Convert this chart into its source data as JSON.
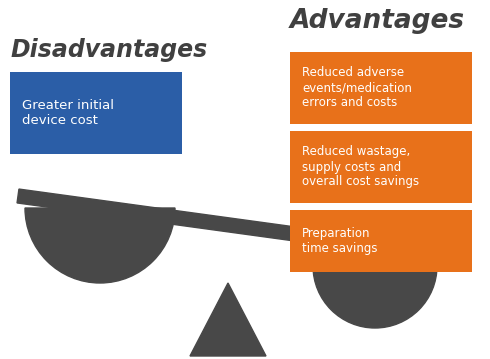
{
  "title_advantages": "Advantages",
  "title_disadvantages": "Disadvantages",
  "disadvantage_box": {
    "text": "Greater initial\ndevice cost",
    "color": "#2B5EA7",
    "text_color": "#FFFFFF"
  },
  "advantage_boxes": [
    {
      "text": "Reduced adverse\nevents/medication\nerrors and costs",
      "color": "#E8711A",
      "text_color": "#FFFFFF"
    },
    {
      "text": "Reduced wastage,\nsupply costs and\noverall cost savings",
      "color": "#E8711A",
      "text_color": "#FFFFFF"
    },
    {
      "text": "Preparation\ntime savings",
      "color": "#E8711A",
      "text_color": "#FFFFFF"
    }
  ],
  "scale_color": "#484848",
  "background_color": "#FFFFFF",
  "title_color": "#404040"
}
